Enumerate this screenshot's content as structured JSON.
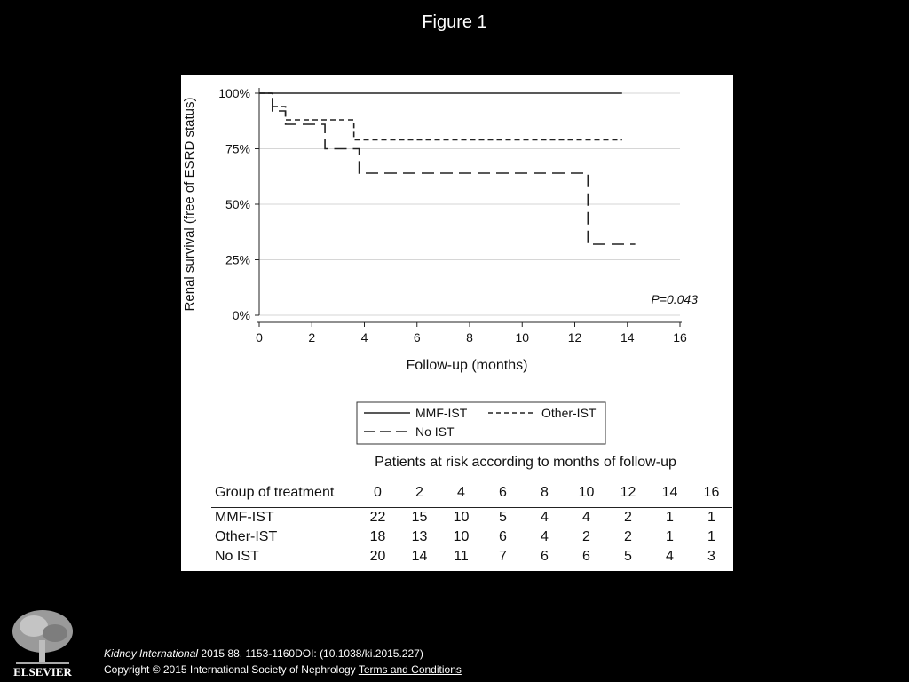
{
  "figure_title": "Figure 1",
  "chart_data": {
    "type": "line",
    "step": true,
    "xlabel": "Follow-up (months)",
    "ylabel": "Renal survival (free of ESRD status)",
    "xlim": [
      0,
      16
    ],
    "ylim": [
      0,
      100
    ],
    "xticks": [
      0,
      2,
      4,
      6,
      8,
      10,
      12,
      14,
      16
    ],
    "yticks": [
      0,
      25,
      50,
      75,
      100
    ],
    "ytick_labels": [
      "0%",
      "25%",
      "50%",
      "75%",
      "100%"
    ],
    "grid": true,
    "annotation": "P=0.043",
    "series": [
      {
        "name": "MMF-IST",
        "style": "solid",
        "x": [
          0,
          13.8
        ],
        "y": [
          100,
          100
        ]
      },
      {
        "name": "Other-IST",
        "style": "short-dash",
        "x": [
          0,
          0.5,
          1.0,
          3.6,
          13.8
        ],
        "y": [
          100,
          94,
          88,
          79,
          79
        ]
      },
      {
        "name": "No IST",
        "style": "long-dash",
        "x": [
          0,
          0.5,
          1.0,
          2.5,
          3.8,
          12.5,
          14.3
        ],
        "y": [
          100,
          92,
          86,
          75,
          64,
          32,
          32
        ]
      }
    ],
    "legend": [
      "MMF-IST",
      "Other-IST",
      "No IST"
    ],
    "risk_table": {
      "caption": "Patients at risk according to months of follow-up",
      "header_label": "Group of treatment",
      "months": [
        "0",
        "2",
        "4",
        "6",
        "8",
        "10",
        "12",
        "14",
        "16"
      ],
      "rows": [
        {
          "group": "MMF-IST",
          "values": [
            "22",
            "15",
            "10",
            "5",
            "4",
            "4",
            "2",
            "1",
            "1"
          ]
        },
        {
          "group": "Other-IST",
          "values": [
            "18",
            "13",
            "10",
            "6",
            "4",
            "2",
            "2",
            "1",
            "1"
          ]
        },
        {
          "group": "No IST",
          "values": [
            "20",
            "14",
            "11",
            "7",
            "6",
            "6",
            "5",
            "4",
            "3"
          ]
        }
      ]
    }
  },
  "publisher_logo": {
    "label": "ELSEVIER"
  },
  "citation": {
    "journal": "Kidney International",
    "details": " 2015 88, 1153-1160DOI: (10.1038/ki.2015.227)",
    "copyright": "Copyright © 2015 International Society of Nephrology",
    "terms_link": "Terms and Conditions"
  }
}
